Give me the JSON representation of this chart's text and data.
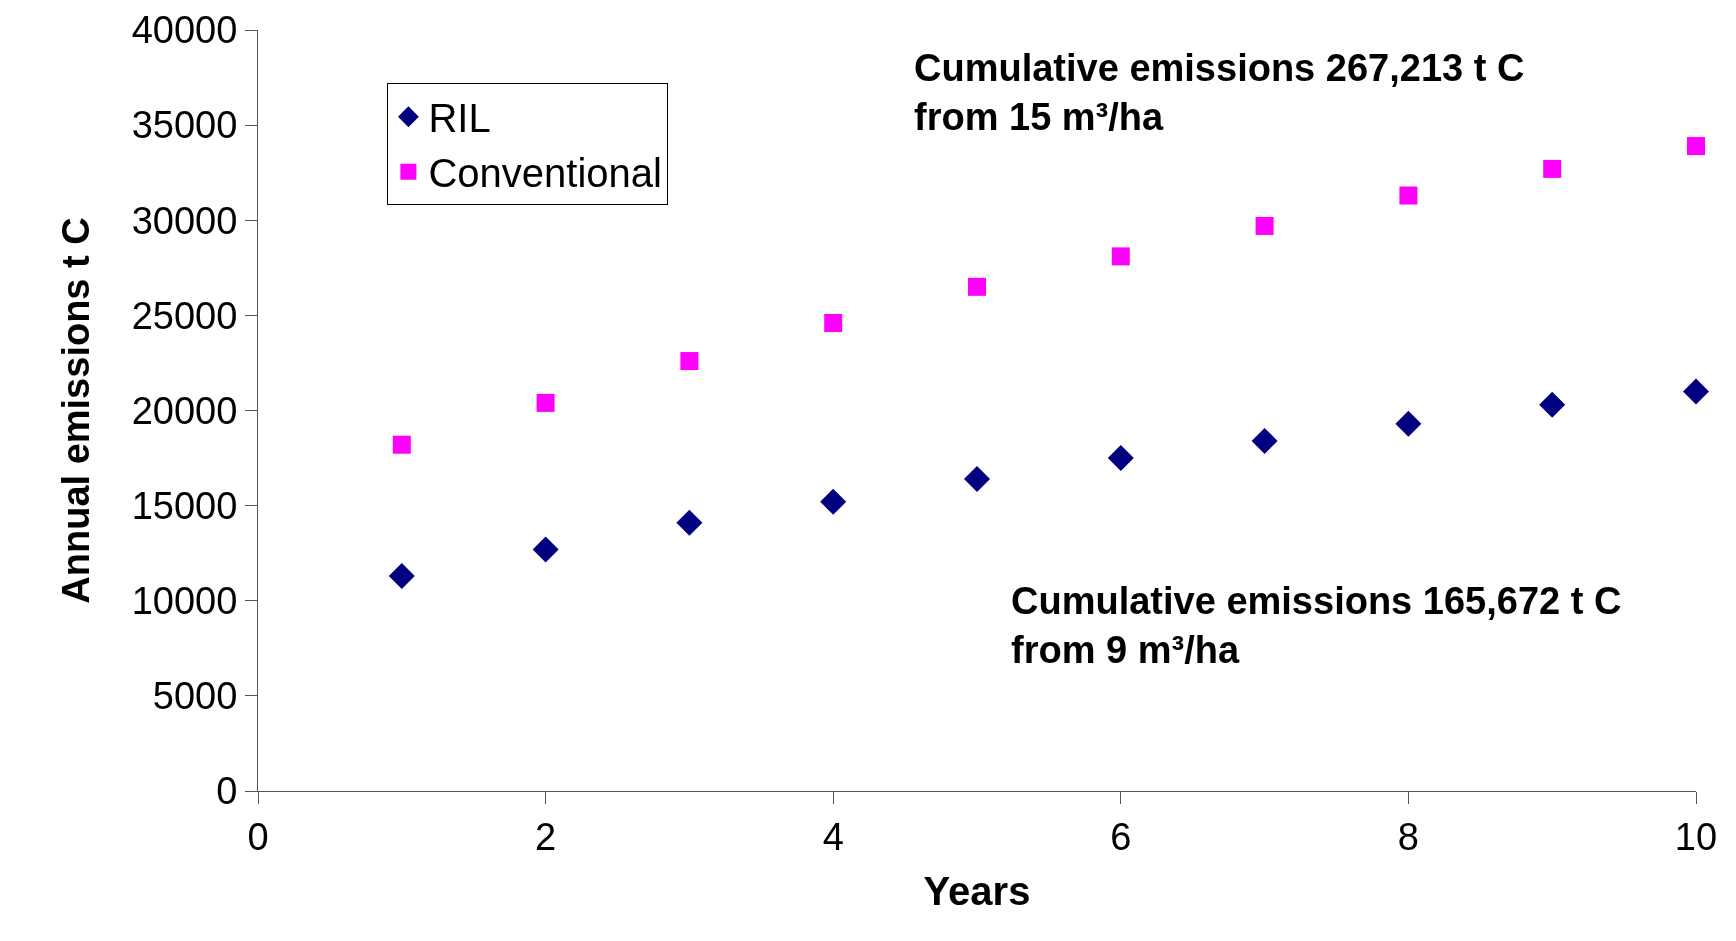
{
  "chart_data": {
    "type": "scatter",
    "xlabel": "Years",
    "ylabel": "Annual emissions t C",
    "x": [
      1,
      2,
      3,
      4,
      5,
      6,
      7,
      8,
      9,
      10
    ],
    "series": [
      {
        "name": "RIL",
        "color": "#000080",
        "marker": "diamond",
        "values": [
          11300,
          12700,
          14100,
          15200,
          16400,
          17500,
          18400,
          19300,
          20300,
          21000
        ]
      },
      {
        "name": "Conventional",
        "color": "#ff00ff",
        "marker": "square",
        "values": [
          18200,
          20400,
          22600,
          24600,
          26500,
          28100,
          29700,
          31300,
          32700,
          33900
        ]
      }
    ],
    "xlim": [
      0,
      10
    ],
    "xticks": [
      0,
      2,
      4,
      6,
      8,
      10
    ],
    "ylim": [
      0,
      40000
    ],
    "yticks": [
      0,
      5000,
      10000,
      15000,
      20000,
      25000,
      30000,
      35000,
      40000
    ],
    "grid": false,
    "legend": "top left",
    "annotations": [
      "Cumulative emissions 267,213 t C\nfrom 15 m³/ha",
      "Cumulative emissions 165,672 t C\nfrom 9 m³/ha"
    ]
  }
}
